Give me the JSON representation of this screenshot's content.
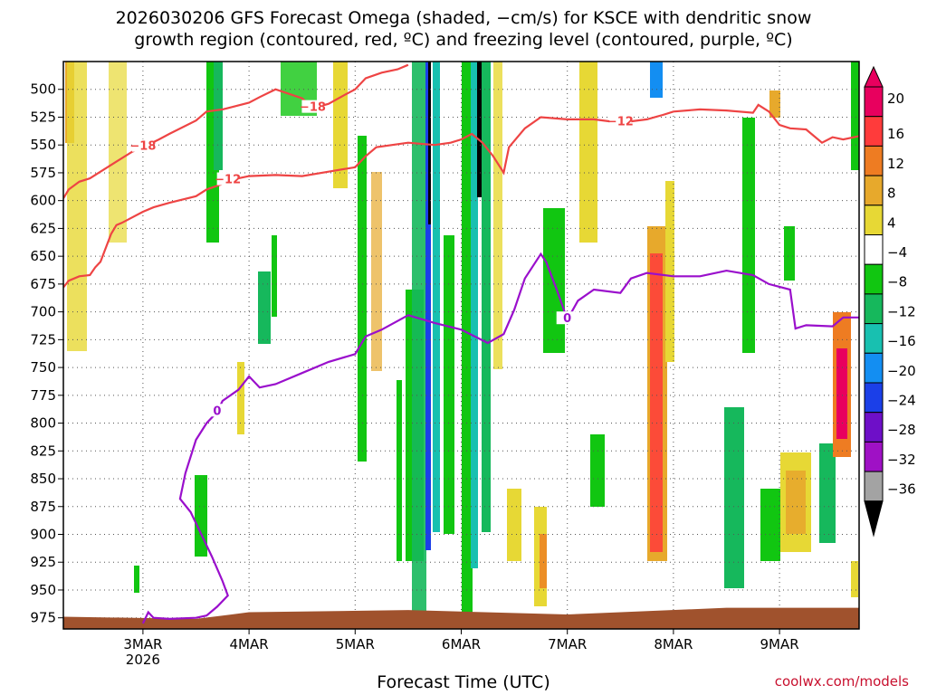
{
  "title_line1": "2026030206 GFS Forecast Omega (shaded, −cm/s) for KSCE with dendritic snow",
  "title_line2": "growth region (contoured, red, ºC) and freezing level (contoured, purple, ºC)",
  "credit": "coolwx.com/models",
  "chart_data": {
    "type": "heatmap",
    "xlabel": "Forecast Time (UTC)",
    "x_range_days": [
      2.25,
      9.75
    ],
    "x_ticks": [
      {
        "day": 3,
        "label": "3MAR",
        "sub": "2026"
      },
      {
        "day": 4,
        "label": "4MAR",
        "sub": ""
      },
      {
        "day": 5,
        "label": "5MAR",
        "sub": ""
      },
      {
        "day": 6,
        "label": "6MAR",
        "sub": ""
      },
      {
        "day": 7,
        "label": "7MAR",
        "sub": ""
      },
      {
        "day": 8,
        "label": "8MAR",
        "sub": ""
      },
      {
        "day": 9,
        "label": "9MAR",
        "sub": ""
      }
    ],
    "y_range_hPa": [
      475,
      985
    ],
    "y_ticks": [
      500,
      525,
      550,
      575,
      600,
      625,
      650,
      675,
      700,
      725,
      750,
      775,
      800,
      825,
      850,
      875,
      900,
      925,
      950,
      975
    ],
    "grid": true,
    "colorbar": {
      "labels": [
        "20",
        "16",
        "12",
        "8",
        "4",
        "−4",
        "−8",
        "−12",
        "−16",
        "−20",
        "−24",
        "−28",
        "−32",
        "−36"
      ],
      "colors": [
        "#e8005e",
        "#ff3b3b",
        "#ee7c22",
        "#e7a92c",
        "#e7d835",
        "#ffffff",
        "#11c611",
        "#16b85c",
        "#18c0b0",
        "#138ef2",
        "#1b3fe8",
        "#6e0fc8",
        "#9f11c5",
        "#a3a3a3"
      ]
    },
    "ground_color": "#a0522d",
    "dgz_contours": [
      {
        "label": "−12",
        "color": "#ee4444",
        "points": [
          [
            2.25,
            678
          ],
          [
            2.3,
            672
          ],
          [
            2.4,
            668
          ],
          [
            2.5,
            667
          ],
          [
            2.55,
            660
          ],
          [
            2.6,
            655
          ],
          [
            2.7,
            630
          ],
          [
            2.75,
            622
          ],
          [
            2.8,
            620
          ],
          [
            3.0,
            610
          ],
          [
            3.1,
            606
          ],
          [
            3.25,
            602
          ],
          [
            3.5,
            596
          ],
          [
            3.6,
            590
          ],
          [
            3.75,
            585
          ],
          [
            3.8,
            582
          ],
          [
            4.0,
            578
          ],
          [
            4.25,
            577
          ],
          [
            4.5,
            578
          ],
          [
            4.75,
            574
          ],
          [
            5.0,
            570
          ],
          [
            5.1,
            560
          ],
          [
            5.2,
            552
          ],
          [
            5.5,
            548
          ],
          [
            5.75,
            550
          ],
          [
            5.9,
            548
          ],
          [
            6.0,
            545
          ],
          [
            6.1,
            540
          ],
          [
            6.2,
            548
          ],
          [
            6.3,
            560
          ],
          [
            6.4,
            575
          ],
          [
            6.45,
            552
          ],
          [
            6.6,
            535
          ],
          [
            6.75,
            525
          ],
          [
            7.0,
            527
          ],
          [
            7.25,
            527
          ],
          [
            7.5,
            530
          ],
          [
            7.75,
            527
          ],
          [
            7.9,
            523
          ],
          [
            8.0,
            520
          ],
          [
            8.25,
            518
          ],
          [
            8.5,
            519
          ],
          [
            8.75,
            521
          ],
          [
            8.8,
            514
          ],
          [
            8.9,
            520
          ],
          [
            9.0,
            532
          ],
          [
            9.1,
            535
          ],
          [
            9.25,
            536
          ],
          [
            9.4,
            548
          ],
          [
            9.5,
            543
          ],
          [
            9.6,
            545
          ],
          [
            9.75,
            542
          ]
        ]
      },
      {
        "label": "−18",
        "color": "#ee4444",
        "points": [
          [
            2.25,
            598
          ],
          [
            2.3,
            590
          ],
          [
            2.4,
            583
          ],
          [
            2.5,
            580
          ],
          [
            2.6,
            574
          ],
          [
            2.75,
            565
          ],
          [
            2.9,
            556
          ],
          [
            3.0,
            552
          ],
          [
            3.15,
            545
          ],
          [
            3.25,
            540
          ],
          [
            3.5,
            528
          ],
          [
            3.6,
            520
          ],
          [
            3.75,
            518
          ],
          [
            4.0,
            512
          ],
          [
            4.1,
            507
          ],
          [
            4.25,
            500
          ],
          [
            4.5,
            508
          ],
          [
            4.6,
            517
          ],
          [
            4.75,
            513
          ],
          [
            4.9,
            505
          ],
          [
            5.0,
            500
          ],
          [
            5.1,
            490
          ],
          [
            5.25,
            485
          ],
          [
            5.4,
            482
          ],
          [
            5.5,
            478
          ]
        ]
      }
    ],
    "freezing_contour": {
      "label": "0",
      "color": "#9a0fcc",
      "points": [
        [
          3.0,
          980
        ],
        [
          3.05,
          970
        ],
        [
          3.1,
          975
        ],
        [
          3.25,
          976
        ],
        [
          3.5,
          975
        ],
        [
          3.6,
          973
        ],
        [
          3.7,
          965
        ],
        [
          3.8,
          955
        ],
        [
          3.75,
          942
        ],
        [
          3.65,
          920
        ],
        [
          3.55,
          900
        ],
        [
          3.45,
          880
        ],
        [
          3.35,
          868
        ],
        [
          3.4,
          845
        ],
        [
          3.5,
          815
        ],
        [
          3.6,
          800
        ],
        [
          3.7,
          790
        ],
        [
          3.75,
          780
        ],
        [
          3.9,
          770
        ],
        [
          4.0,
          758
        ],
        [
          4.1,
          768
        ],
        [
          4.25,
          765
        ],
        [
          4.5,
          755
        ],
        [
          4.75,
          745
        ],
        [
          5.0,
          738
        ],
        [
          5.1,
          722
        ],
        [
          5.25,
          716
        ],
        [
          5.5,
          703
        ],
        [
          5.75,
          710
        ],
        [
          6.0,
          716
        ],
        [
          6.25,
          728
        ],
        [
          6.4,
          720
        ],
        [
          6.5,
          698
        ],
        [
          6.6,
          670
        ],
        [
          6.75,
          648
        ],
        [
          6.8,
          655
        ],
        [
          6.9,
          680
        ],
        [
          7.0,
          707
        ],
        [
          7.1,
          690
        ],
        [
          7.25,
          680
        ],
        [
          7.5,
          683
        ],
        [
          7.6,
          670
        ],
        [
          7.75,
          665
        ],
        [
          8.0,
          668
        ],
        [
          8.25,
          668
        ],
        [
          8.5,
          663
        ],
        [
          8.75,
          667
        ],
        [
          8.9,
          675
        ],
        [
          9.1,
          680
        ],
        [
          9.15,
          715
        ],
        [
          9.25,
          712
        ],
        [
          9.5,
          713
        ],
        [
          9.6,
          705
        ],
        [
          9.75,
          705
        ]
      ]
    }
  }
}
